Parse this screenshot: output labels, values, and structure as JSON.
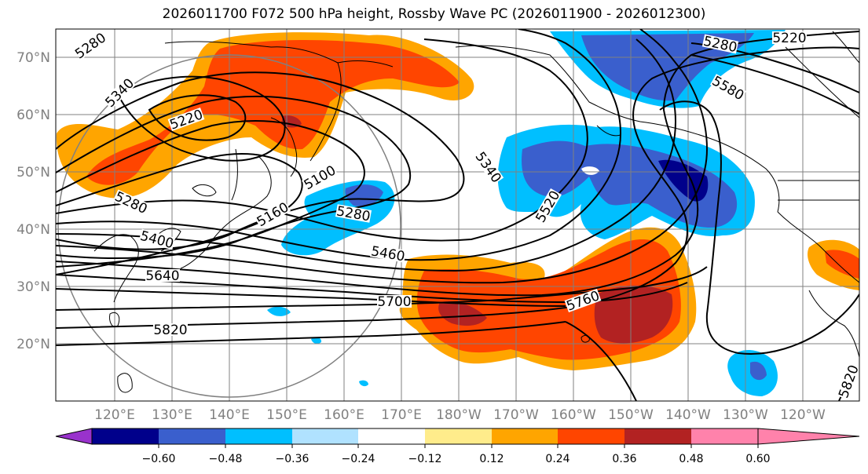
{
  "title": "2026011700 F072 500 hPa height, Rossby Wave PC (2026011900 - 2026012300)",
  "map": {
    "lat_labels": [
      "70°N",
      "60°N",
      "50°N",
      "40°N",
      "30°N",
      "20°N"
    ],
    "lon_labels": [
      "120°E",
      "130°E",
      "140°E",
      "150°E",
      "160°E",
      "170°E",
      "180°W",
      "170°W",
      "160°W",
      "150°W",
      "140°W",
      "130°W",
      "120°W"
    ],
    "contour_labels": [
      "5280",
      "5340",
      "5220",
      "5280",
      "5400",
      "5640",
      "5820",
      "5100",
      "5160",
      "5280",
      "5460",
      "5340",
      "5520",
      "5700",
      "5760",
      "5280",
      "5220",
      "5580",
      "5820"
    ]
  },
  "colorbar": {
    "colors": [
      "#9932cc",
      "#00008b",
      "#3a5fcd",
      "#00bfff",
      "#b0e2ff",
      "#ffffff",
      "#ffec8b",
      "#ffa500",
      "#ff4500",
      "#b22222",
      "#ff82ab"
    ],
    "ticks": [
      "−0.60",
      "−0.48",
      "−0.36",
      "−0.24",
      "−0.12",
      "0.12",
      "0.24",
      "0.36",
      "0.48",
      "0.60"
    ]
  },
  "legend_colors": {
    "orange": "#ffa500",
    "red_orange": "#ff4500",
    "dark_red": "#b22222",
    "light_blue": "#00bfff",
    "royal_blue": "#3a5fcd",
    "navy": "#00008b",
    "pale_blue": "#b0e2ff",
    "pale_yellow": "#ffec8b"
  }
}
